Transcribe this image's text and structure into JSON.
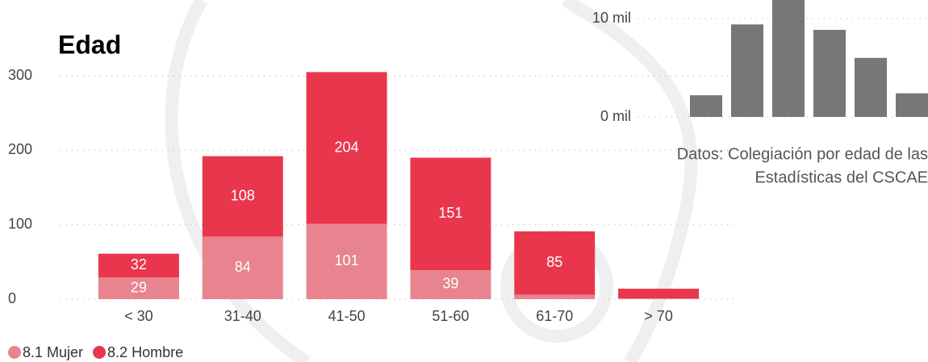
{
  "chart_data": [
    {
      "type": "bar",
      "title": "Edad",
      "categories": [
        "< 30",
        "31-40",
        "41-50",
        "51-60",
        "61-70",
        "> 70"
      ],
      "series": [
        {
          "name": "8.1 Mujer",
          "color": "#e8848f",
          "values": [
            29,
            84,
            101,
            39,
            6,
            1
          ]
        },
        {
          "name": "8.2 Hombre",
          "color": "#e8374d",
          "values": [
            32,
            108,
            204,
            151,
            85,
            13
          ]
        }
      ],
      "ylim": [
        0,
        300
      ],
      "yticks": [
        0,
        100,
        200,
        300
      ],
      "grid": true,
      "stacked": true
    },
    {
      "type": "bar",
      "categories": [
        null,
        null,
        null,
        null,
        null,
        null
      ],
      "values": [
        2200,
        9400,
        12500,
        8850,
        6000,
        2400
      ],
      "color": "#777777",
      "ylim": [
        0,
        12000
      ],
      "yticks": [
        {
          "value": 0,
          "label": "0 mil"
        },
        {
          "value": 10000,
          "label": "10 mil"
        }
      ],
      "grid": true,
      "caption": [
        "Datos: Colegiación por edad de las",
        "Estadísticas del CSCAE"
      ]
    }
  ]
}
